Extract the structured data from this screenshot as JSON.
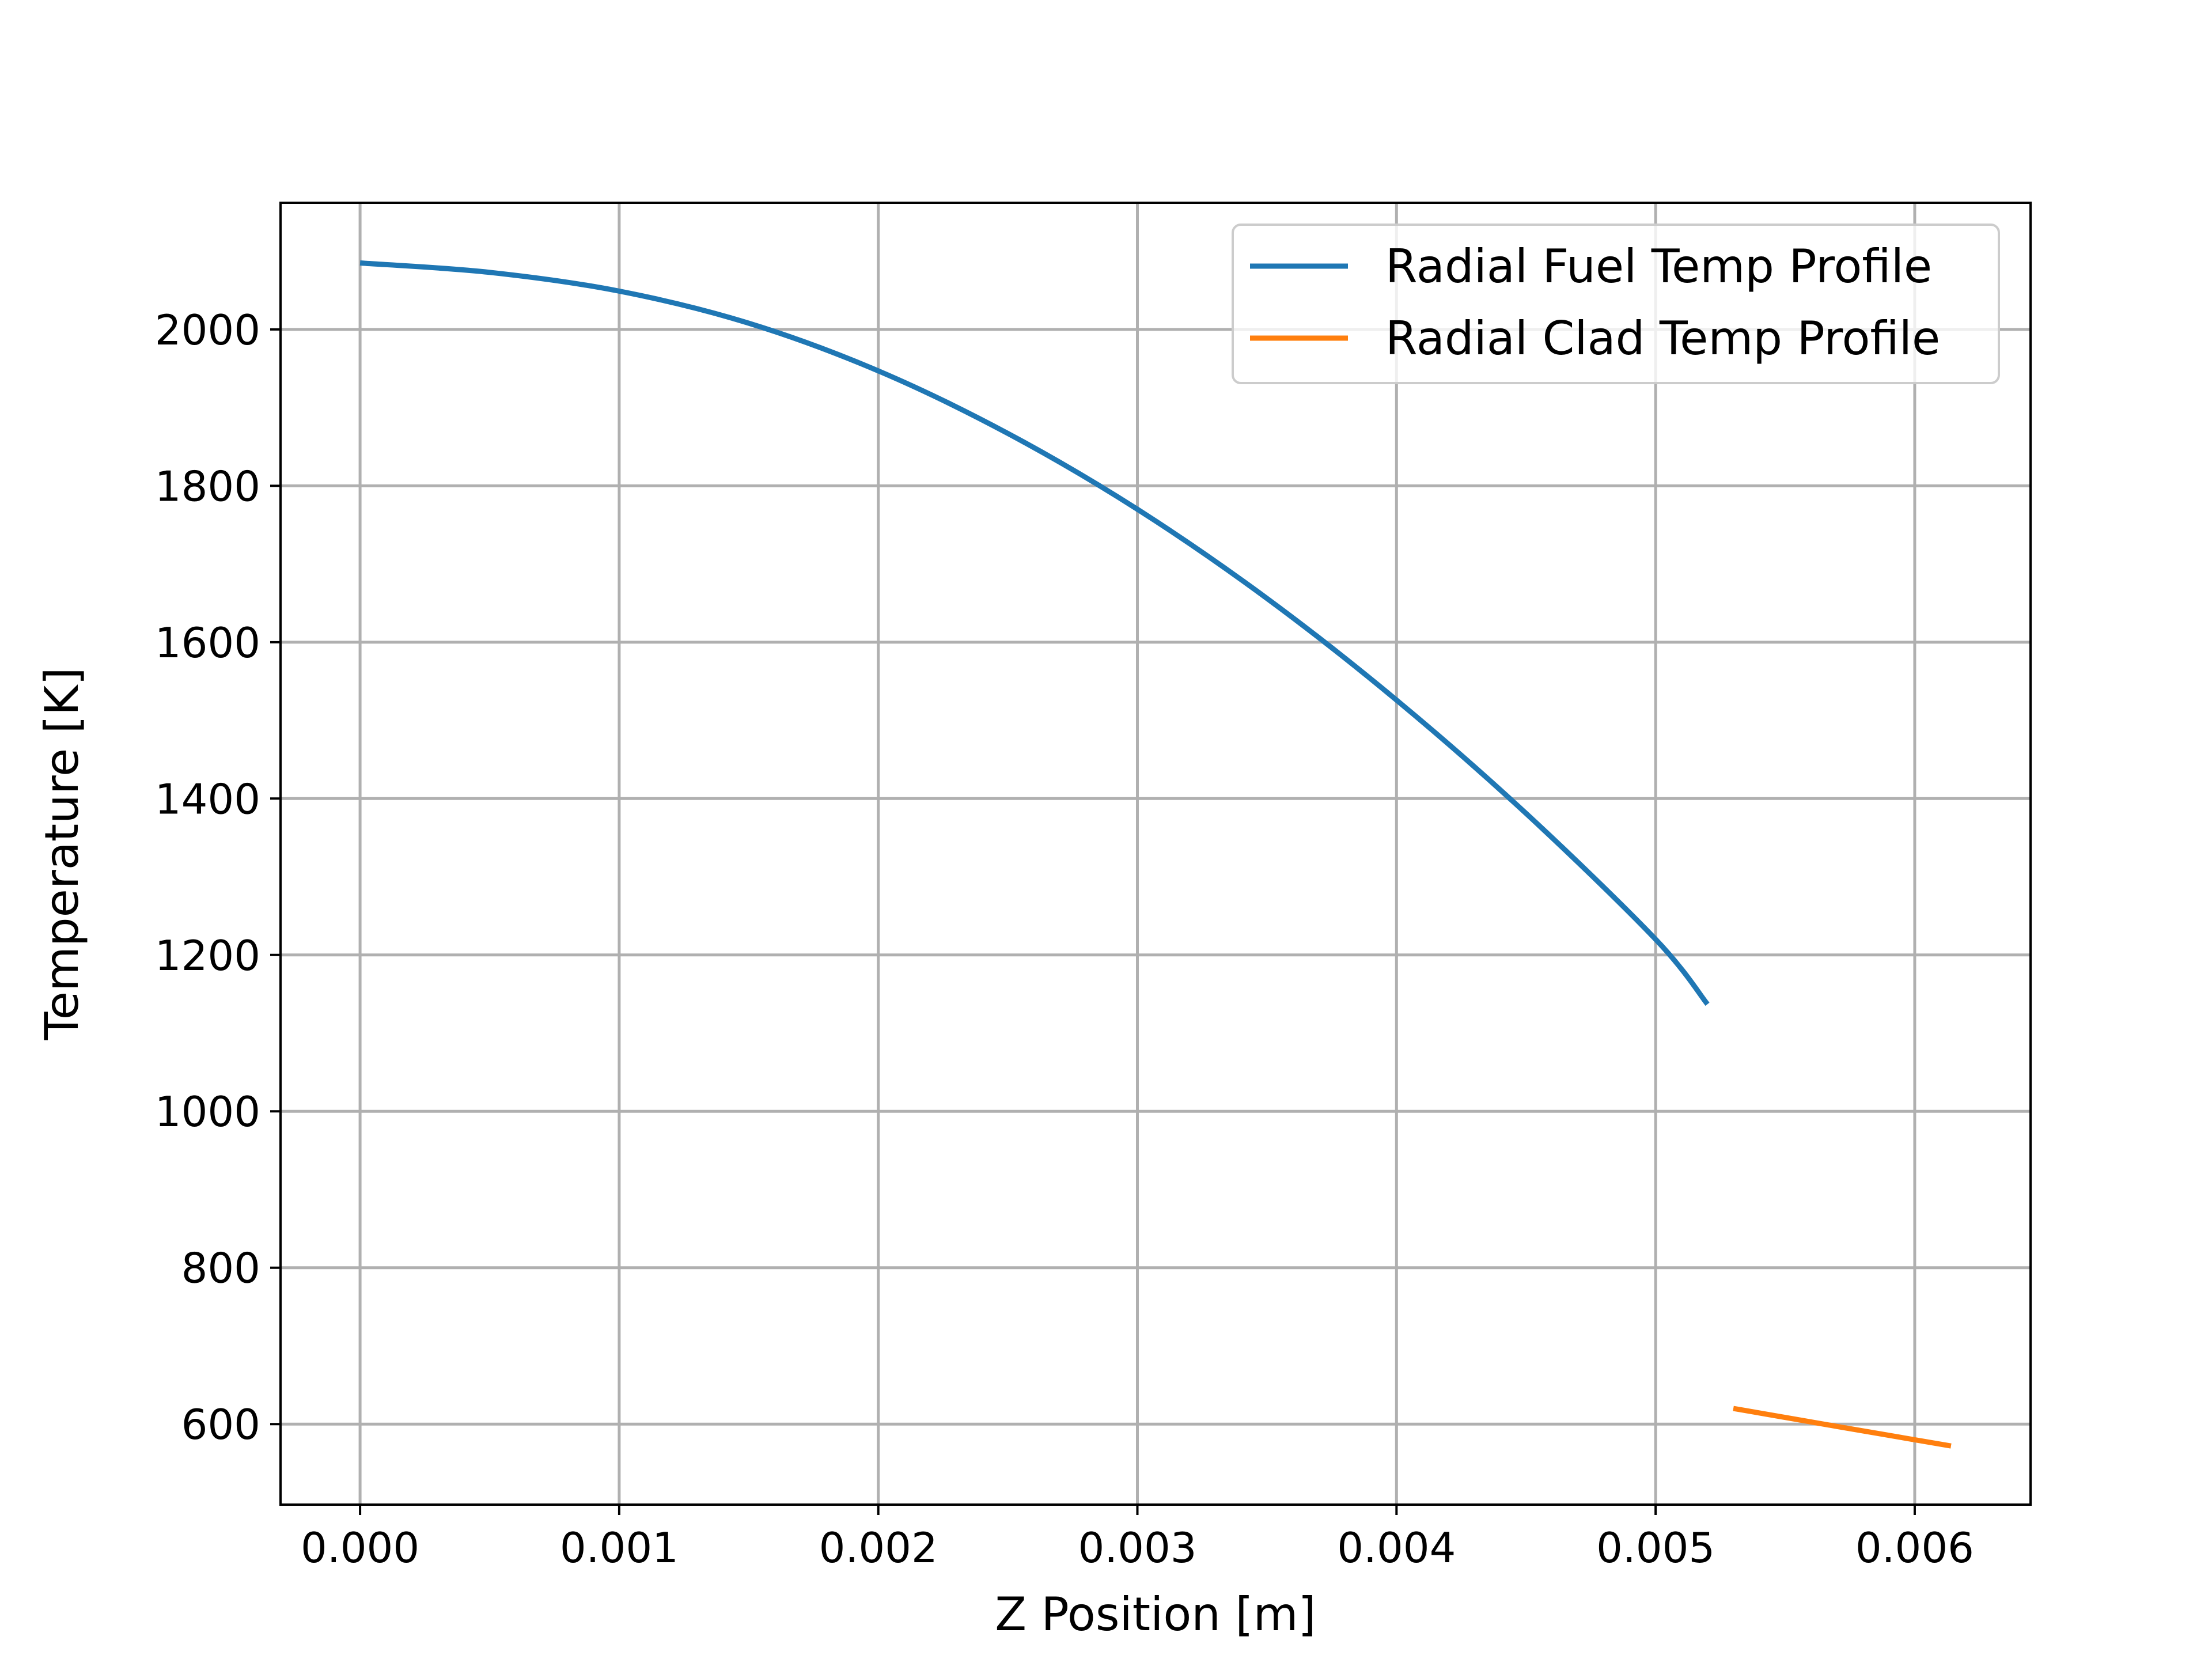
{
  "chart_data": {
    "type": "line",
    "title": "",
    "xlabel": "Z Position [m]",
    "ylabel": "Temperature [K]",
    "xlim": [
      -0.000307,
      0.006447
    ],
    "ylim": [
      497,
      2162
    ],
    "xticks": [
      0.0,
      0.001,
      0.002,
      0.003,
      0.004,
      0.005,
      0.006
    ],
    "xtick_labels": [
      "0.000",
      "0.001",
      "0.002",
      "0.003",
      "0.004",
      "0.005",
      "0.006"
    ],
    "yticks": [
      600,
      800,
      1000,
      1200,
      1400,
      1600,
      1800,
      2000
    ],
    "ytick_labels": [
      "600",
      "800",
      "1000",
      "1200",
      "1400",
      "1600",
      "1800",
      "2000"
    ],
    "grid": true,
    "legend_position": "top-right",
    "series": [
      {
        "name": "Radial Fuel Temp Profile",
        "color": "#1f77b4",
        "x": [
          0.0,
          0.0005,
          0.001,
          0.0015,
          0.002,
          0.0025,
          0.003,
          0.0035,
          0.004,
          0.0045,
          0.005,
          0.0052
        ],
        "y": [
          2085,
          2073,
          2049,
          2008,
          1947,
          1867,
          1770,
          1656,
          1526,
          1381,
          1220,
          1137
        ]
      },
      {
        "name": "Radial Clad Temp Profile",
        "color": "#ff7f0e",
        "x": [
          0.0053,
          0.0057,
          0.00614
        ],
        "y": [
          620,
          597,
          572
        ]
      }
    ]
  }
}
